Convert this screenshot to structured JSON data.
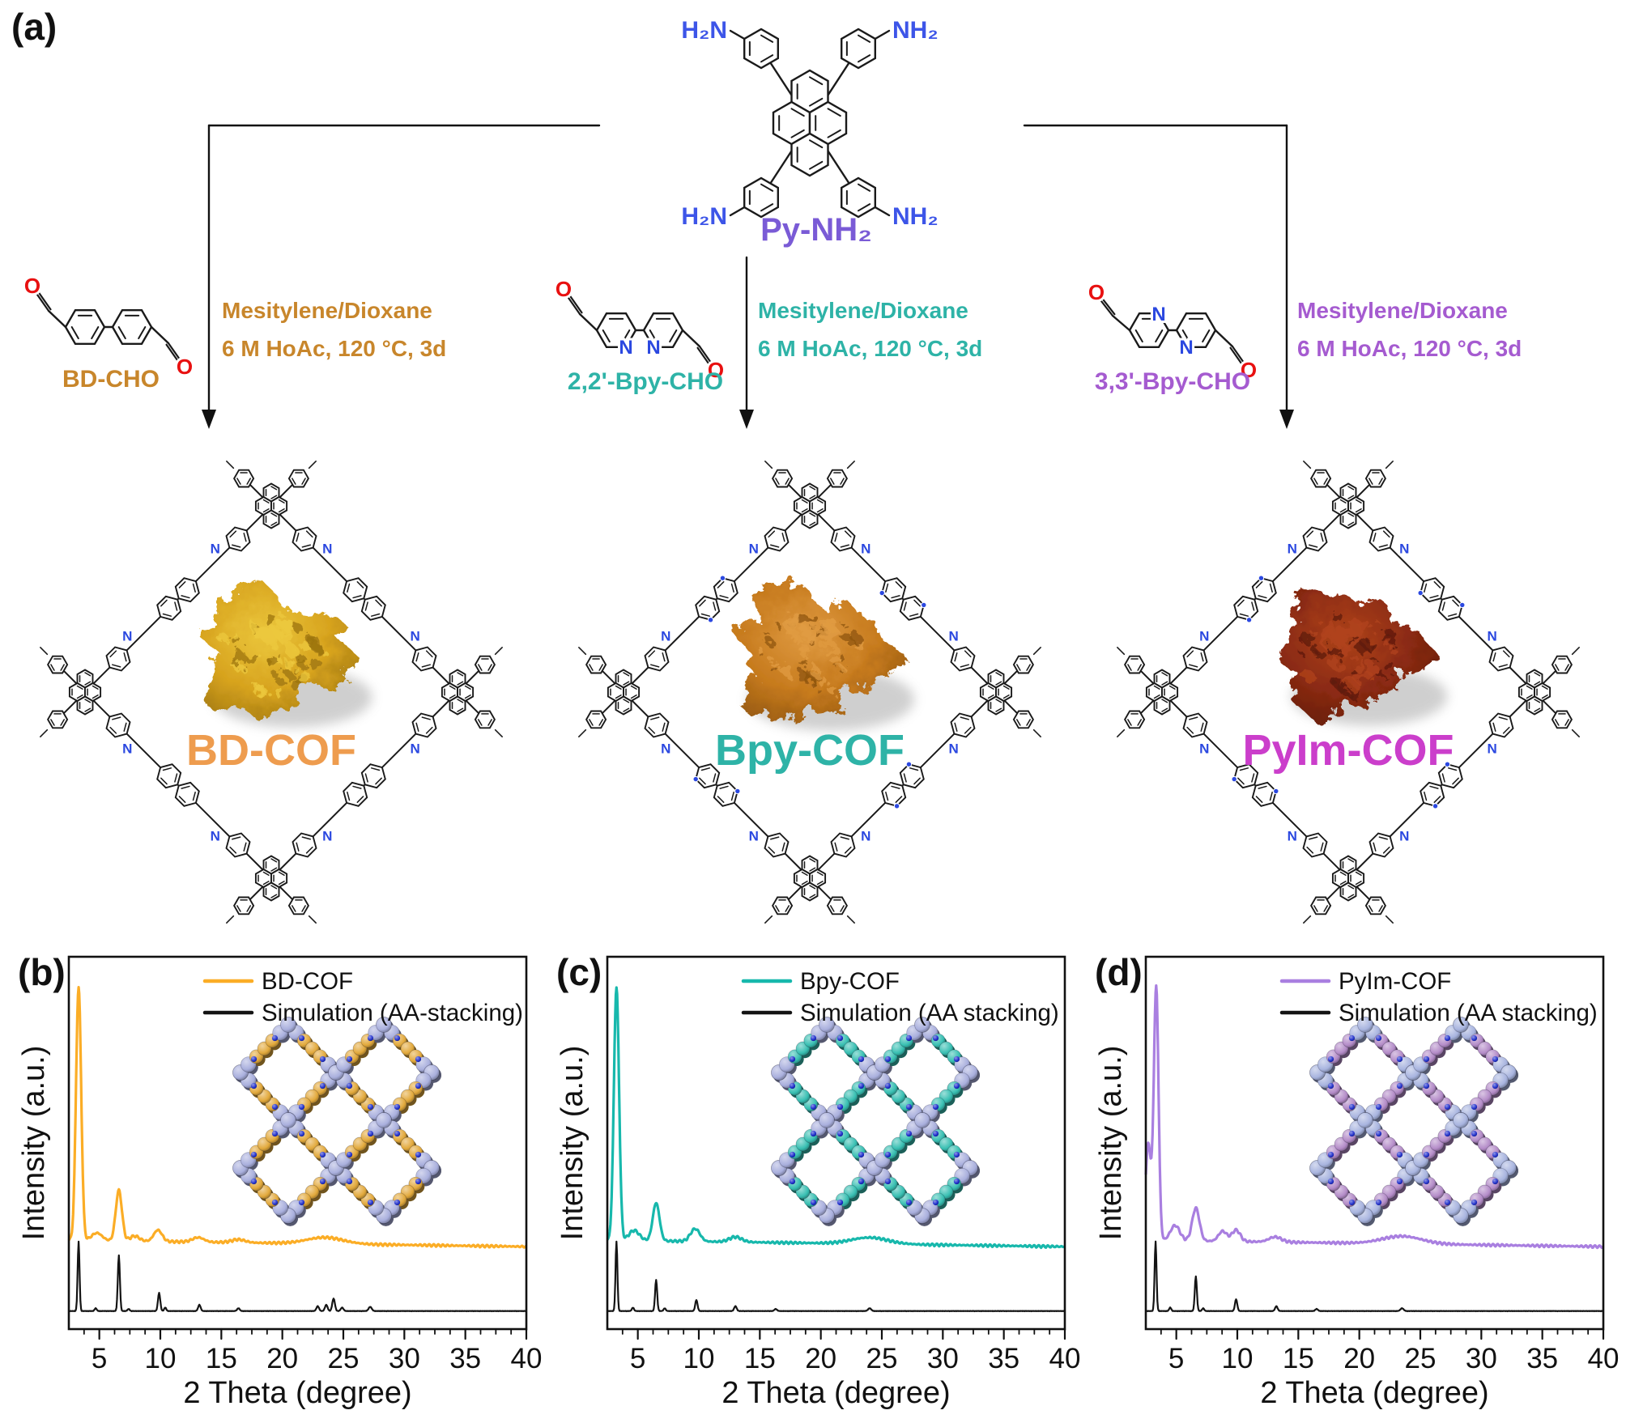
{
  "figure": {
    "background": "#ffffff",
    "bond_color": "#1a1a1a",
    "arrow_color": "#111111",
    "panel_labels": {
      "a": "(a)",
      "b": "(b)",
      "c": "(c)",
      "d": "(d)"
    },
    "monomer": {
      "name": "Py-NH₂",
      "name_color": "#7a5bd6",
      "amine_color": "#3d55e8",
      "amines": {
        "nw": "H₂N",
        "ne": "NH₂",
        "sw": "H₂N",
        "se": "NH₂"
      }
    },
    "atoms": {
      "nitrogen": "N",
      "oxygen": "O",
      "nitrogen_color": "#2b48e0",
      "oxygen_color": "#e81010"
    },
    "branches": [
      {
        "id": "bd",
        "reagent_label": "BD-CHO",
        "accent_color": "#c8862b",
        "conditions": [
          "Mesitylene/Dioxane",
          "6 M HoAc, 120 °C, 3d"
        ],
        "product_label": "BD-COF",
        "product_label_color": "#ee9c4e",
        "linker": "biphenyl",
        "linker_has_pyridine_n": false,
        "powder": {
          "base": "#d7a31e",
          "dark": "#9c7410",
          "light": "#ecc83d"
        }
      },
      {
        "id": "bpy",
        "reagent_label": "2,2'-Bpy-CHO",
        "accent_color": "#2eb3a7",
        "conditions": [
          "Mesitylene/Dioxane",
          "6 M HoAc, 120 °C, 3d"
        ],
        "product_label": "Bpy-COF",
        "product_label_color": "#2eb3a7",
        "linker": "2,2'-bipyridine",
        "linker_has_pyridine_n": true,
        "powder": {
          "base": "#c67a1d",
          "dark": "#8f5510",
          "light": "#e09b42"
        }
      },
      {
        "id": "pyim",
        "reagent_label": "3,3'-Bpy-CHO",
        "accent_color": "#a55bd0",
        "conditions": [
          "Mesitylene/Dioxane",
          "6 M HoAc, 120 °C, 3d"
        ],
        "product_label": "PyIm-COF",
        "product_label_color": "#cb3ecb",
        "linker": "3,3'-bipyridine",
        "linker_has_pyridine_n": true,
        "powder": {
          "base": "#8a2a12",
          "dark": "#5e1a0a",
          "light": "#b0431c"
        }
      }
    ]
  },
  "chart_data": [
    {
      "type": "line",
      "panel_label": "(b)",
      "xlabel": "2 Theta (degree)",
      "ylabel": "Intensity (a.u.)",
      "xlim": [
        2.5,
        40
      ],
      "x_major_ticks": [
        5,
        10,
        15,
        20,
        25,
        30,
        35,
        40
      ],
      "x_minor_tick_step": 1.25,
      "y_axis_ticks": "none",
      "grid": false,
      "legend_position": "top-right",
      "peaks_format": [
        "two_theta_deg",
        "relative_intensity",
        "fwhm_deg"
      ],
      "series": [
        {
          "name": "BD-COF",
          "color": "#fbad26",
          "role": "experimental",
          "peaks": [
            [
              3.3,
              100,
              0.5
            ],
            [
              4.8,
              3,
              1.0
            ],
            [
              6.6,
              20,
              0.6
            ],
            [
              7.9,
              2,
              0.9
            ],
            [
              9.8,
              4.5,
              0.8
            ],
            [
              13.1,
              1.8,
              1.1
            ],
            [
              16.4,
              1.2,
              1.3
            ],
            [
              23.5,
              2.5,
              3.5
            ]
          ]
        },
        {
          "name": "Simulation (AA-stacking)",
          "color": "#141414",
          "role": "simulation",
          "peaks": [
            [
              3.3,
              100,
              0.18
            ],
            [
              4.7,
              4,
              0.2
            ],
            [
              6.6,
              80,
              0.2
            ],
            [
              7.4,
              3,
              0.2
            ],
            [
              9.9,
              26,
              0.22
            ],
            [
              10.4,
              5,
              0.2
            ],
            [
              13.2,
              9,
              0.24
            ],
            [
              16.4,
              4,
              0.25
            ],
            [
              22.9,
              7,
              0.25
            ],
            [
              23.6,
              9,
              0.25
            ],
            [
              24.2,
              18,
              0.25
            ],
            [
              24.9,
              5,
              0.25
            ],
            [
              27.2,
              6,
              0.3
            ]
          ]
        }
      ],
      "inset": {
        "description": "space-filling model of AA-stacked BD-COF, 2x2 pores",
        "node_color": "#a9afdd",
        "linker_color": "#e2a93c",
        "accent_color": "#2433cc"
      }
    },
    {
      "type": "line",
      "panel_label": "(c)",
      "xlabel": "2 Theta (degree)",
      "ylabel": "Intensity (a.u.)",
      "xlim": [
        2.5,
        40
      ],
      "x_major_ticks": [
        5,
        10,
        15,
        20,
        25,
        30,
        35,
        40
      ],
      "x_minor_tick_step": 1.25,
      "y_axis_ticks": "none",
      "grid": false,
      "legend_position": "top-right",
      "peaks_format": [
        "two_theta_deg",
        "relative_intensity",
        "fwhm_deg"
      ],
      "series": [
        {
          "name": "Bpy-COF",
          "color": "#17b8ac",
          "role": "experimental",
          "peaks": [
            [
              3.25,
              100,
              0.5
            ],
            [
              4.7,
              4,
              1.0
            ],
            [
              6.5,
              15,
              0.65
            ],
            [
              9.7,
              5,
              0.9
            ],
            [
              13.0,
              2,
              1.2
            ],
            [
              24.0,
              2.5,
              3.5
            ]
          ]
        },
        {
          "name": "Simulation (AA stacking)",
          "color": "#141414",
          "role": "simulation",
          "peaks": [
            [
              3.25,
              100,
              0.18
            ],
            [
              4.6,
              5,
              0.2
            ],
            [
              6.5,
              45,
              0.2
            ],
            [
              7.2,
              4,
              0.2
            ],
            [
              9.8,
              16,
              0.22
            ],
            [
              13.0,
              7,
              0.24
            ],
            [
              16.3,
              3,
              0.25
            ],
            [
              24.0,
              4,
              0.3
            ]
          ]
        }
      ],
      "inset": {
        "description": "space-filling model of AA-stacked Bpy-COF, 2x2 pores",
        "node_color": "#a9afdd",
        "linker_color": "#38bfb2",
        "accent_color": "#1e2ecc"
      }
    },
    {
      "type": "line",
      "panel_label": "(d)",
      "xlabel": "2 Theta (degree)",
      "ylabel": "Intensity (a.u.)",
      "xlim": [
        2.5,
        40
      ],
      "x_major_ticks": [
        5,
        10,
        15,
        20,
        25,
        30,
        35,
        40
      ],
      "x_minor_tick_step": 1.25,
      "y_axis_ticks": "none",
      "grid": false,
      "legend_position": "top-right",
      "peaks_format": [
        "two_theta_deg",
        "relative_intensity",
        "fwhm_deg"
      ],
      "series": [
        {
          "name": "PyIm-COF",
          "color": "#a97fe0",
          "role": "experimental",
          "peaks": [
            [
              2.7,
              38,
              0.55
            ],
            [
              3.35,
              100,
              0.45
            ],
            [
              4.9,
              6,
              0.9
            ],
            [
              6.6,
              13,
              0.7
            ],
            [
              8.8,
              4,
              0.8
            ],
            [
              9.9,
              4.5,
              0.8
            ],
            [
              13.1,
              2,
              1.2
            ],
            [
              23.5,
              3,
              3.8
            ]
          ]
        },
        {
          "name": "Simulation (AA stacking)",
          "color": "#141414",
          "role": "simulation",
          "peaks": [
            [
              3.3,
              100,
              0.18
            ],
            [
              4.5,
              5,
              0.2
            ],
            [
              6.6,
              50,
              0.2
            ],
            [
              7.2,
              4,
              0.2
            ],
            [
              9.9,
              17,
              0.22
            ],
            [
              13.2,
              7,
              0.24
            ],
            [
              16.5,
              3,
              0.25
            ],
            [
              23.5,
              4,
              0.3
            ]
          ]
        }
      ],
      "inset": {
        "description": "space-filling model of AA-stacked PyIm-COF, 2x2 pores",
        "node_color": "#a8b4df",
        "linker_color": "#b48cc8",
        "accent_color": "#2433cc"
      }
    }
  ]
}
